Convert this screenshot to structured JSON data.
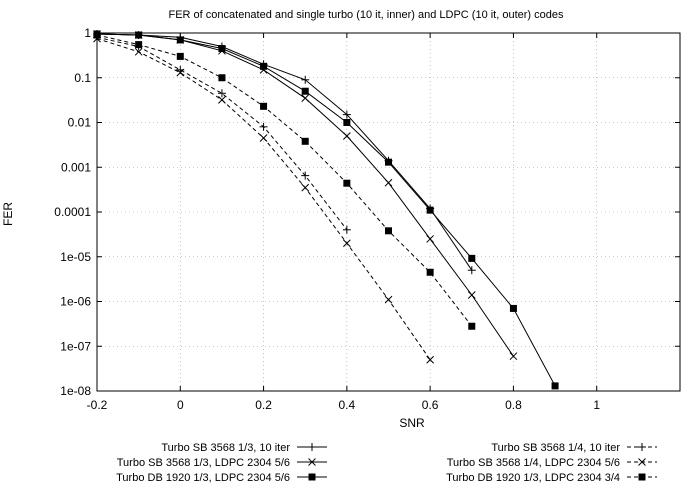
{
  "chart_data": {
    "type": "line",
    "title": "FER of concatenated and single turbo (10 it, inner) and LDPC (10 it, outer) codes",
    "xlabel": "SNR",
    "ylabel": "FER",
    "xlim": [
      -0.2,
      1.2
    ],
    "ylim": [
      1e-08,
      1
    ],
    "yscale": "log",
    "grid": true,
    "legend_position": "bottom",
    "x_ticks": [
      -0.2,
      0,
      0.2,
      0.4,
      0.6,
      0.8,
      1
    ],
    "x_tick_labels": [
      "-0.2",
      "0",
      "0.2",
      "0.4",
      "0.6",
      "0.8",
      "1"
    ],
    "y_ticks": [
      1,
      0.1,
      0.01,
      0.001,
      0.0001,
      1e-05,
      1e-06,
      1e-07,
      1e-08
    ],
    "y_tick_labels": [
      "1",
      "0.1",
      "0.01",
      "0.001",
      "0.0001",
      "1e-05",
      "1e-06",
      "1e-07",
      "1e-08"
    ],
    "series": [
      {
        "name": "Turbo SB 3568 1/3, 10 iter",
        "style": "solid",
        "marker": "plus",
        "x": [
          -0.2,
          -0.1,
          0,
          0.1,
          0.2,
          0.3,
          0.4,
          0.5,
          0.6,
          0.7
        ],
        "y": [
          0.95,
          0.9,
          0.8,
          0.5,
          0.2,
          0.09,
          0.015,
          0.0014,
          0.00012,
          5e-06
        ]
      },
      {
        "name": "Turbo SB 3568 1/3, LDPC 2304 5/6",
        "style": "solid",
        "marker": "cross",
        "x": [
          -0.2,
          -0.1,
          0,
          0.1,
          0.2,
          0.3,
          0.4,
          0.5,
          0.6,
          0.7,
          0.8
        ],
        "y": [
          0.95,
          0.9,
          0.7,
          0.4,
          0.15,
          0.035,
          0.005,
          0.00045,
          2.5e-05,
          1.4e-06,
          6e-08
        ]
      },
      {
        "name": "Turbo DB 1920 1/3, LDPC 2304 5/6",
        "style": "solid",
        "marker": "square",
        "x": [
          -0.2,
          -0.1,
          0,
          0.1,
          0.2,
          0.3,
          0.4,
          0.5,
          0.6,
          0.7,
          0.8,
          0.9
        ],
        "y": [
          0.95,
          0.9,
          0.7,
          0.45,
          0.18,
          0.05,
          0.01,
          0.0013,
          0.00011,
          9.2e-06,
          7e-07,
          1.3e-08
        ]
      },
      {
        "name": "Turbo SB 3568 1/4, 10 iter",
        "style": "dashed",
        "marker": "plus",
        "x": [
          -0.2,
          -0.1,
          0,
          0.1,
          0.2,
          0.3,
          0.4
        ],
        "y": [
          0.8,
          0.5,
          0.15,
          0.045,
          0.008,
          0.00065,
          4e-05
        ]
      },
      {
        "name": "Turbo SB 3568 1/4, LDPC 2304 5/6",
        "style": "dashed",
        "marker": "cross",
        "x": [
          -0.2,
          -0.1,
          0,
          0.1,
          0.2,
          0.3,
          0.4,
          0.5,
          0.6
        ],
        "y": [
          0.75,
          0.38,
          0.13,
          0.032,
          0.0045,
          0.00035,
          2e-05,
          1.1e-06,
          5e-08
        ]
      },
      {
        "name": "Turbo DB 1920 1/3, LDPC 2304 3/4",
        "style": "dashed",
        "marker": "square",
        "x": [
          -0.2,
          -0.1,
          0,
          0.1,
          0.2,
          0.3,
          0.4,
          0.5,
          0.6,
          0.7
        ],
        "y": [
          0.9,
          0.55,
          0.3,
          0.1,
          0.023,
          0.0038,
          0.00044,
          3.8e-05,
          4.5e-06,
          2.8e-07
        ]
      }
    ]
  }
}
